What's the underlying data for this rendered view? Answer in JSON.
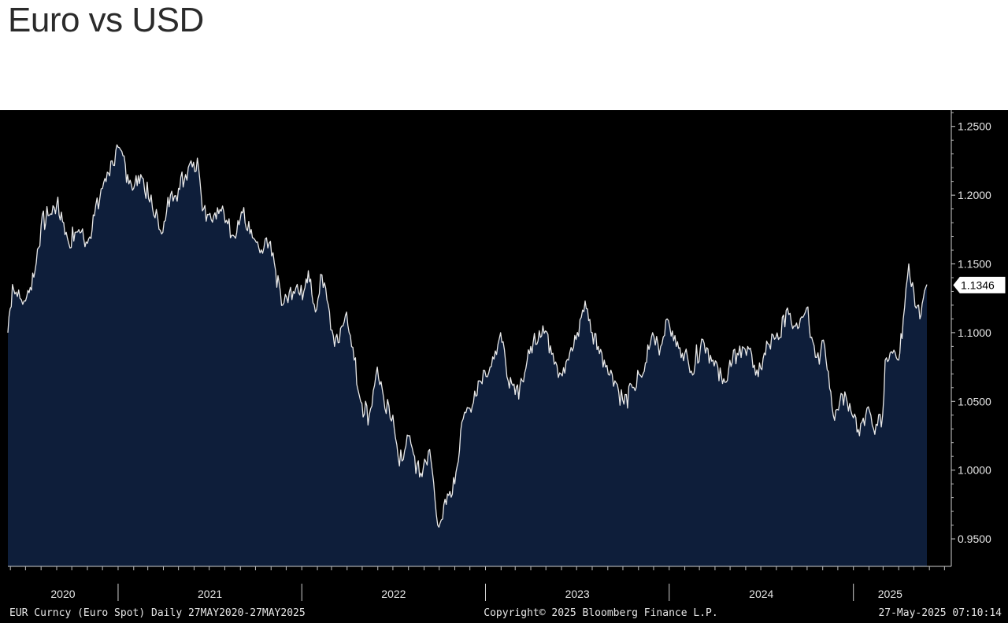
{
  "page": {
    "title": "Euro vs USD"
  },
  "chart_data": {
    "type": "area",
    "title": "Euro vs USD",
    "x_unit": "date",
    "xlim": [
      "2020-05-27",
      "2025-05-27"
    ],
    "ylim": [
      0.93,
      1.255
    ],
    "y_ticks": [
      "1.2500",
      "1.2000",
      "1.1500",
      "1.1000",
      "1.0500",
      "1.0000",
      "0.9500"
    ],
    "x_tick_labels": [
      "2020",
      "2021",
      "2022",
      "2023",
      "2024",
      "2025"
    ],
    "last_value_label": "1.1346",
    "footer": {
      "left": "EUR Curncy (Euro Spot)  Daily 27MAY2020-27MAY2025",
      "center": "Copyright© 2025 Bloomberg Finance L.P.",
      "right": "27-May-2025 07:10:14"
    },
    "colors": {
      "fill": "#0e1e3a",
      "line": "#e8e8e8",
      "background": "#000000",
      "text": "#e6e6e6"
    },
    "grid": false,
    "series": [
      {
        "points": [
          [
            "2020-05-27",
            1.1
          ],
          [
            "2020-06-05",
            1.135
          ],
          [
            "2020-06-20",
            1.125
          ],
          [
            "2020-07-01",
            1.123
          ],
          [
            "2020-07-20",
            1.145
          ],
          [
            "2020-08-01",
            1.178
          ],
          [
            "2020-08-15",
            1.185
          ],
          [
            "2020-09-01",
            1.193
          ],
          [
            "2020-09-15",
            1.18
          ],
          [
            "2020-09-25",
            1.165
          ],
          [
            "2020-10-15",
            1.175
          ],
          [
            "2020-11-01",
            1.165
          ],
          [
            "2020-11-15",
            1.185
          ],
          [
            "2020-12-01",
            1.205
          ],
          [
            "2020-12-20",
            1.225
          ],
          [
            "2021-01-06",
            1.233
          ],
          [
            "2021-01-20",
            1.215
          ],
          [
            "2021-02-01",
            1.205
          ],
          [
            "2021-02-15",
            1.215
          ],
          [
            "2021-03-05",
            1.195
          ],
          [
            "2021-03-31",
            1.173
          ],
          [
            "2021-04-15",
            1.2
          ],
          [
            "2021-05-01",
            1.205
          ],
          [
            "2021-05-15",
            1.215
          ],
          [
            "2021-05-26",
            1.225
          ],
          [
            "2021-06-10",
            1.22
          ],
          [
            "2021-06-20",
            1.19
          ],
          [
            "2021-07-10",
            1.185
          ],
          [
            "2021-07-30",
            1.188
          ],
          [
            "2021-08-20",
            1.17
          ],
          [
            "2021-09-03",
            1.188
          ],
          [
            "2021-09-20",
            1.172
          ],
          [
            "2021-10-10",
            1.158
          ],
          [
            "2021-10-28",
            1.165
          ],
          [
            "2021-11-10",
            1.145
          ],
          [
            "2021-11-24",
            1.12
          ],
          [
            "2021-12-15",
            1.13
          ],
          [
            "2022-01-05",
            1.13
          ],
          [
            "2022-01-14",
            1.145
          ],
          [
            "2022-01-28",
            1.115
          ],
          [
            "2022-02-10",
            1.142
          ],
          [
            "2022-02-25",
            1.115
          ],
          [
            "2022-03-07",
            1.09
          ],
          [
            "2022-03-31",
            1.115
          ],
          [
            "2022-04-15",
            1.08
          ],
          [
            "2022-04-28",
            1.05
          ],
          [
            "2022-05-15",
            1.04
          ],
          [
            "2022-05-31",
            1.075
          ],
          [
            "2022-06-15",
            1.045
          ],
          [
            "2022-07-01",
            1.04
          ],
          [
            "2022-07-14",
            1.003
          ],
          [
            "2022-08-01",
            1.025
          ],
          [
            "2022-08-23",
            0.995
          ],
          [
            "2022-09-12",
            1.015
          ],
          [
            "2022-09-28",
            0.96
          ],
          [
            "2022-10-15",
            0.975
          ],
          [
            "2022-11-01",
            0.99
          ],
          [
            "2022-11-15",
            1.035
          ],
          [
            "2022-12-01",
            1.045
          ],
          [
            "2022-12-20",
            1.065
          ],
          [
            "2023-01-10",
            1.075
          ],
          [
            "2023-01-31",
            1.1
          ],
          [
            "2023-02-15",
            1.065
          ],
          [
            "2023-03-01",
            1.055
          ],
          [
            "2023-03-15",
            1.065
          ],
          [
            "2023-04-01",
            1.09
          ],
          [
            "2023-04-25",
            1.105
          ],
          [
            "2023-05-15",
            1.085
          ],
          [
            "2023-05-31",
            1.07
          ],
          [
            "2023-06-15",
            1.08
          ],
          [
            "2023-06-30",
            1.095
          ],
          [
            "2023-07-18",
            1.123
          ],
          [
            "2023-08-01",
            1.1
          ],
          [
            "2023-08-25",
            1.08
          ],
          [
            "2023-09-15",
            1.065
          ],
          [
            "2023-10-03",
            1.048
          ],
          [
            "2023-10-20",
            1.06
          ],
          [
            "2023-11-10",
            1.07
          ],
          [
            "2023-11-29",
            1.1
          ],
          [
            "2023-12-15",
            1.09
          ],
          [
            "2023-12-28",
            1.11
          ],
          [
            "2024-01-15",
            1.09
          ],
          [
            "2024-02-01",
            1.085
          ],
          [
            "2024-02-14",
            1.072
          ],
          [
            "2024-03-08",
            1.095
          ],
          [
            "2024-03-28",
            1.08
          ],
          [
            "2024-04-16",
            1.063
          ],
          [
            "2024-05-15",
            1.085
          ],
          [
            "2024-06-05",
            1.09
          ],
          [
            "2024-06-26",
            1.068
          ],
          [
            "2024-07-15",
            1.092
          ],
          [
            "2024-08-05",
            1.095
          ],
          [
            "2024-08-23",
            1.118
          ],
          [
            "2024-09-05",
            1.105
          ],
          [
            "2024-09-30",
            1.118
          ],
          [
            "2024-10-20",
            1.082
          ],
          [
            "2024-11-05",
            1.09
          ],
          [
            "2024-11-22",
            1.04
          ],
          [
            "2024-12-10",
            1.055
          ],
          [
            "2025-01-01",
            1.038
          ],
          [
            "2025-01-13",
            1.025
          ],
          [
            "2025-01-28",
            1.045
          ],
          [
            "2025-02-10",
            1.03
          ],
          [
            "2025-02-28",
            1.04
          ],
          [
            "2025-03-05",
            1.08
          ],
          [
            "2025-03-20",
            1.085
          ],
          [
            "2025-04-01",
            1.08
          ],
          [
            "2025-04-10",
            1.11
          ],
          [
            "2025-04-21",
            1.15
          ],
          [
            "2025-05-01",
            1.13
          ],
          [
            "2025-05-13",
            1.11
          ],
          [
            "2025-05-20",
            1.125
          ],
          [
            "2025-05-27",
            1.135
          ]
        ]
      }
    ]
  }
}
